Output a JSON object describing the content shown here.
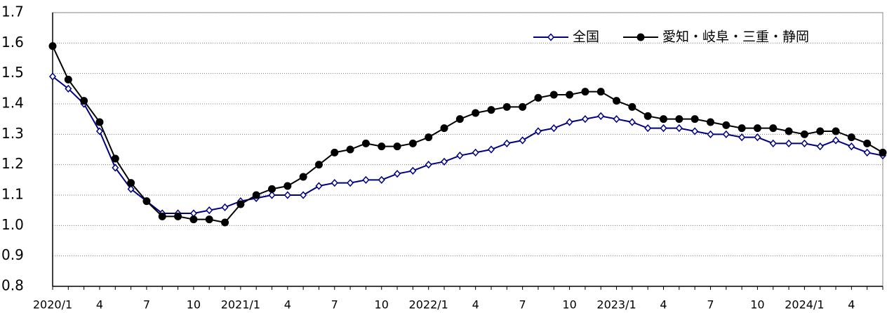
{
  "chart_data": {
    "type": "line",
    "categories": [
      "2020/1",
      null,
      null,
      "4",
      null,
      null,
      "7",
      null,
      null,
      "10",
      null,
      null,
      "2021/1",
      null,
      null,
      "4",
      null,
      null,
      "7",
      null,
      null,
      "10",
      null,
      null,
      "2022/1",
      null,
      null,
      "4",
      null,
      null,
      "7",
      null,
      null,
      "10",
      null,
      null,
      "2023/1",
      null,
      null,
      "4",
      null,
      null,
      "7",
      null,
      null,
      "10",
      null,
      null,
      "2024/1",
      null,
      null,
      "4",
      null,
      null
    ],
    "series": [
      {
        "name": "全国",
        "color": "#000080",
        "marker": "diamond",
        "values": [
          1.49,
          1.45,
          1.4,
          1.31,
          1.19,
          1.12,
          1.08,
          1.04,
          1.04,
          1.04,
          1.05,
          1.06,
          1.08,
          1.09,
          1.1,
          1.1,
          1.1,
          1.13,
          1.14,
          1.14,
          1.15,
          1.15,
          1.17,
          1.18,
          1.2,
          1.21,
          1.23,
          1.24,
          1.25,
          1.27,
          1.28,
          1.31,
          1.32,
          1.34,
          1.35,
          1.36,
          1.35,
          1.34,
          1.32,
          1.32,
          1.32,
          1.31,
          1.3,
          1.3,
          1.29,
          1.29,
          1.27,
          1.27,
          1.27,
          1.26,
          1.28,
          1.26,
          1.24,
          1.23
        ]
      },
      {
        "name": "愛知・岐阜・三重・静岡",
        "color": "#000000",
        "marker": "circle",
        "values": [
          1.59,
          1.48,
          1.41,
          1.34,
          1.22,
          1.14,
          1.08,
          1.03,
          1.03,
          1.02,
          1.02,
          1.01,
          1.07,
          1.1,
          1.12,
          1.13,
          1.16,
          1.2,
          1.24,
          1.25,
          1.27,
          1.26,
          1.26,
          1.27,
          1.29,
          1.32,
          1.35,
          1.37,
          1.38,
          1.39,
          1.39,
          1.42,
          1.43,
          1.43,
          1.44,
          1.44,
          1.41,
          1.39,
          1.36,
          1.35,
          1.35,
          1.35,
          1.34,
          1.33,
          1.32,
          1.32,
          1.32,
          1.31,
          1.3,
          1.31,
          1.31,
          1.29,
          1.27,
          1.24
        ]
      }
    ],
    "ylim": [
      0.8,
      1.7
    ],
    "yticks": [
      0.8,
      0.9,
      {
        "value": 1,
        "label": "1.0"
      },
      1.1,
      1.2,
      1.3,
      1.4,
      1.5,
      1.6,
      1.7
    ],
    "grid": true
  }
}
